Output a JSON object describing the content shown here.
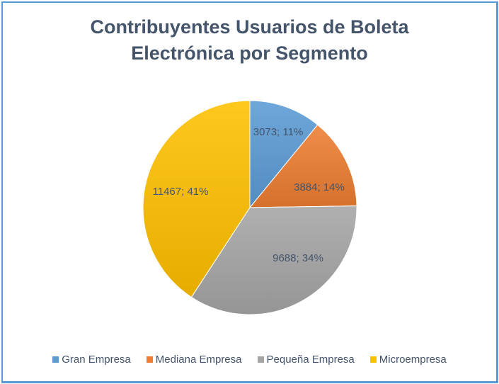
{
  "chart_data": {
    "type": "pie",
    "title_line1": "Contribuyentes Usuarios de Boleta",
    "title_line2": "Electrónica por Segmento",
    "legend_position": "bottom",
    "slices": [
      {
        "name": "Gran Empresa",
        "value": 3073,
        "percent": 11,
        "label": "3073; 11%",
        "color": "#5b9bd5"
      },
      {
        "name": "Mediana Empresa",
        "value": 3884,
        "percent": 14,
        "label": "3884; 14%",
        "color": "#ed7d31"
      },
      {
        "name": "Pequeña Empresa",
        "value": 9688,
        "percent": 34,
        "label": "9688; 34%",
        "color": "#a5a5a5"
      },
      {
        "name": "Microempresa",
        "value": 11467,
        "percent": 41,
        "label": "11467; 41%",
        "color": "#ffc000"
      }
    ],
    "label_color": "#44546a",
    "border_color": "#5b9bd5"
  }
}
